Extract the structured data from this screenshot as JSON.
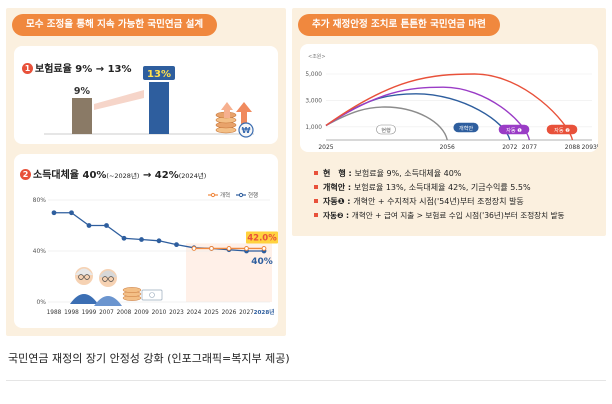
{
  "left": {
    "title": "모수 조정을 통해 지속 가능한 국민연금 설계"
  },
  "right": {
    "title": "추가 재정안정 조치로 튼튼한 국민연금 마련"
  },
  "colors": {
    "panel_bg": "#fbf0df",
    "orange": "#f0883e",
    "red": "#e8513a",
    "navy": "#2e5e9e",
    "purple": "#9a3cc6",
    "gray": "#8c8c8c",
    "highlight": "#fff0e8"
  },
  "chart_data": [
    {
      "type": "bar",
      "title_num": "1",
      "title": "보험료율 9% → 13%",
      "categories": [
        "",
        ""
      ],
      "values": [
        9,
        13
      ],
      "value_labels": [
        "9%",
        "13%"
      ],
      "colors": [
        "#8a7a66",
        "#2e5e9e"
      ],
      "icons": [
        "coin-stack-icon",
        "won-coin-icon",
        "up-arrow-icon"
      ]
    },
    {
      "type": "line",
      "title_num": "2",
      "title_pre": "소득대체율 40%",
      "title_sub1": "(~2028년)",
      "title_mid": " → 42%",
      "title_sub2": "(2024년)",
      "x": [
        "1988",
        "1998",
        "1999",
        "2007",
        "2008",
        "2009",
        "2010",
        "2023",
        "2024",
        "2025",
        "2026",
        "2027",
        "2028년"
      ],
      "yticks": [
        "0%",
        "40%",
        "80%"
      ],
      "ylim": [
        0,
        80
      ],
      "legend": [
        "개혁",
        "현행"
      ],
      "series": [
        {
          "name": "현행",
          "values": [
            70,
            70,
            60,
            60,
            50,
            49,
            48,
            45,
            42.5,
            42,
            41,
            40,
            40
          ]
        },
        {
          "name": "개혁",
          "values": [
            null,
            null,
            null,
            null,
            null,
            null,
            null,
            null,
            42,
            42,
            42,
            42,
            42
          ]
        }
      ],
      "labels": [
        "42.0%",
        "40%"
      ]
    },
    {
      "type": "line",
      "unit": "<조원>",
      "yticks": [
        "1,000",
        "3,000",
        "5,000"
      ],
      "xticks": [
        "2025",
        "2056",
        "2072",
        "2077",
        "2088",
        "2093년"
      ],
      "series": [
        {
          "name": "현행",
          "color": "#8c8c8c",
          "peak_year": 2040,
          "peak": 2500,
          "end_year": 2056
        },
        {
          "name": "개혁안",
          "color": "#2e5e9e",
          "peak_year": 2048,
          "peak": 3500,
          "end_year": 2072
        },
        {
          "name": "자동 ❶",
          "color": "#9a3cc6",
          "peak_year": 2055,
          "peak": 4000,
          "end_year": 2077
        },
        {
          "name": "자동 ❷",
          "color": "#e8513a",
          "peak_year": 2063,
          "peak": 5000,
          "end_year": 2088
        }
      ]
    }
  ],
  "notes": [
    {
      "label": "현　행 : ",
      "text": "보험료율 9%, 소득대체율 40%"
    },
    {
      "label": "개혁안 : ",
      "text": "보험료율 13%, 소득대체율 42%, 기금수익률 5.5%"
    },
    {
      "label": "자동❶ : ",
      "text": "개혁안 + 수지적자 시점('54년)부터 조정장치 발동"
    },
    {
      "label": "자동❷ : ",
      "text": "개혁안 + 급여 지출 > 보험료 수입 시점('36년)부터 조정장치 발동"
    }
  ],
  "caption": "국민연금 재정의 장기 안정성 강화 (인포그래픽=복지부 제공)"
}
